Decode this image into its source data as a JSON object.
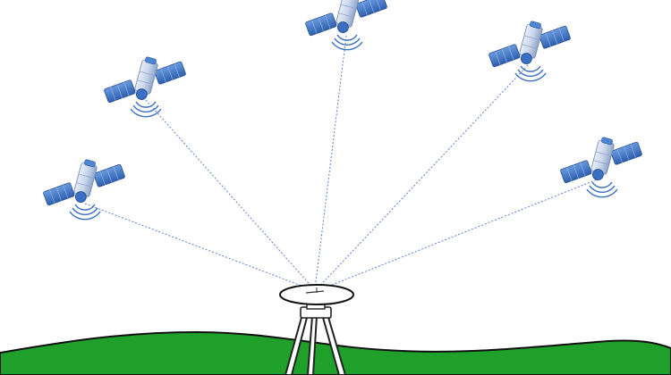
{
  "diagram": {
    "type": "gnss-satellite-receiver-illustration",
    "satellite_count": 5,
    "colors": {
      "background": "#ffffff",
      "ground_fill": "#1fa02a",
      "ground_outline": "#111111",
      "signal_line": "#5b7fd1",
      "panel": "#4e86d6",
      "panel_dark": "#2d5fae",
      "body": "#c9d6ec",
      "body_dark": "#8fa4c8",
      "dish": "#3a6fc4",
      "antenna_outline": "#111111",
      "tripod": "#222222"
    }
  }
}
